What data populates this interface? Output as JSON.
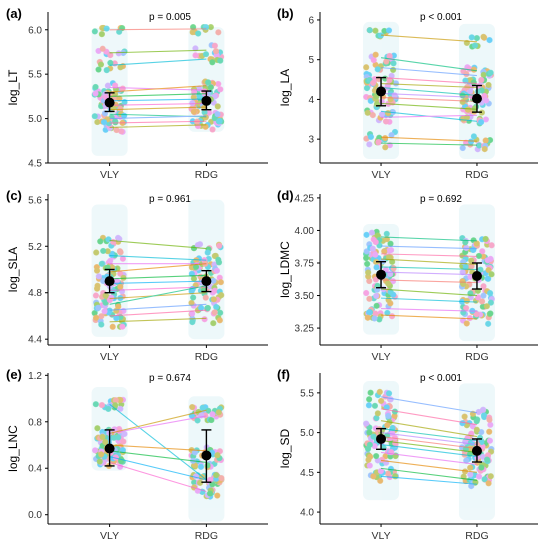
{
  "figure": {
    "x_categories": [
      "VLY",
      "RDG"
    ]
  },
  "chart_data": [
    {
      "type": "scatter",
      "panel_label": "(a)",
      "ylabel": "log_LT",
      "pvalue": "p = 0.005",
      "ylim": [
        4.5,
        6.2
      ],
      "yticks": [
        "4.5",
        "5.0",
        "5.5",
        "6.0"
      ],
      "yticks_values": [
        4.5,
        5.0,
        5.5,
        6.0
      ],
      "categories": [
        "VLY",
        "RDG"
      ],
      "means": [
        5.18,
        5.2
      ],
      "errors": [
        [
          5.08,
          5.29
        ],
        [
          5.1,
          5.31
        ]
      ],
      "pairs": [
        [
          6.0,
          6.01
        ],
        [
          5.74,
          5.77
        ],
        [
          5.6,
          5.67
        ],
        [
          5.35,
          5.32
        ],
        [
          5.3,
          5.37
        ],
        [
          5.25,
          5.28
        ],
        [
          5.2,
          5.22
        ],
        [
          5.15,
          5.17
        ],
        [
          5.1,
          5.13
        ],
        [
          5.05,
          5.02
        ],
        [
          5.0,
          5.03
        ],
        [
          4.95,
          4.97
        ],
        [
          4.9,
          4.93
        ]
      ],
      "cloud_min": [
        4.58,
        4.85
      ],
      "cloud_max": [
        6.02,
        6.03
      ]
    },
    {
      "type": "scatter",
      "panel_label": "(b)",
      "ylabel": "log_LA",
      "pvalue": "p < 0.001",
      "ylim": [
        2.4,
        6.2
      ],
      "yticks": [
        "3",
        "4",
        "5",
        "6"
      ],
      "yticks_values": [
        3,
        4,
        5,
        6
      ],
      "categories": [
        "VLY",
        "RDG"
      ],
      "means": [
        4.2,
        4.02
      ],
      "errors": [
        [
          3.84,
          4.55
        ],
        [
          3.68,
          4.35
        ]
      ],
      "pairs": [
        [
          5.62,
          5.45
        ],
        [
          5.05,
          4.72
        ],
        [
          4.8,
          4.6
        ],
        [
          4.55,
          4.4
        ],
        [
          4.4,
          4.3
        ],
        [
          4.3,
          4.1
        ],
        [
          4.15,
          4.05
        ],
        [
          4.05,
          3.95
        ],
        [
          3.9,
          3.75
        ],
        [
          3.7,
          3.45
        ],
        [
          3.55,
          3.6
        ],
        [
          3.05,
          2.95
        ],
        [
          2.9,
          2.85
        ]
      ],
      "cloud_min": [
        2.5,
        2.5
      ],
      "cloud_max": [
        5.95,
        5.9
      ]
    },
    {
      "type": "scatter",
      "panel_label": "(c)",
      "ylabel": "log_SLA",
      "pvalue": "p = 0.961",
      "ylim": [
        4.35,
        5.65
      ],
      "yticks": [
        "4.4",
        "4.8",
        "5.2",
        "5.6"
      ],
      "yticks_values": [
        4.4,
        4.8,
        5.2,
        5.6
      ],
      "categories": [
        "VLY",
        "RDG"
      ],
      "means": [
        4.9,
        4.9
      ],
      "errors": [
        [
          4.8,
          5.0
        ],
        [
          4.81,
          4.99
        ]
      ],
      "pairs": [
        [
          5.25,
          5.18
        ],
        [
          5.12,
          5.08
        ],
        [
          5.05,
          5.05
        ],
        [
          4.98,
          5.05
        ],
        [
          4.92,
          4.95
        ],
        [
          4.88,
          4.9
        ],
        [
          4.82,
          4.85
        ],
        [
          4.75,
          4.8
        ],
        [
          4.7,
          4.86
        ],
        [
          4.65,
          4.7
        ],
        [
          4.6,
          4.65
        ],
        [
          4.55,
          4.58
        ]
      ],
      "cloud_min": [
        4.42,
        4.4
      ],
      "cloud_max": [
        5.56,
        5.6
      ]
    },
    {
      "type": "scatter",
      "panel_label": "(d)",
      "ylabel": "log_LDMC",
      "pvalue": "p = 0.692",
      "ylim": [
        3.12,
        4.28
      ],
      "yticks": [
        "3.25",
        "3.50",
        "3.75",
        "4.00",
        "4.25"
      ],
      "yticks_values": [
        3.25,
        3.5,
        3.75,
        4.0,
        4.25
      ],
      "categories": [
        "VLY",
        "RDG"
      ],
      "means": [
        3.66,
        3.65
      ],
      "errors": [
        [
          3.56,
          3.76
        ],
        [
          3.55,
          3.75
        ]
      ],
      "pairs": [
        [
          3.95,
          3.92
        ],
        [
          3.88,
          3.86
        ],
        [
          3.82,
          3.8
        ],
        [
          3.78,
          3.74
        ],
        [
          3.72,
          3.7
        ],
        [
          3.68,
          3.66
        ],
        [
          3.62,
          3.6
        ],
        [
          3.55,
          3.5
        ],
        [
          3.48,
          3.45
        ],
        [
          3.4,
          3.38
        ],
        [
          3.35,
          3.32
        ]
      ],
      "cloud_min": [
        3.2,
        3.15
      ],
      "cloud_max": [
        4.05,
        4.2
      ]
    },
    {
      "type": "scatter",
      "panel_label": "(e)",
      "ylabel": "log_LNC",
      "pvalue": "p = 0.674",
      "ylim": [
        -0.08,
        1.22
      ],
      "yticks": [
        "0.0",
        "0.4",
        "0.8",
        "1.2"
      ],
      "yticks_values": [
        0.0,
        0.4,
        0.8,
        1.2
      ],
      "categories": [
        "VLY",
        "RDG"
      ],
      "means": [
        0.57,
        0.51
      ],
      "errors": [
        [
          0.42,
          0.73
        ],
        [
          0.28,
          0.73
        ]
      ],
      "pairs": [
        [
          0.95,
          0.3
        ],
        [
          0.7,
          0.85
        ],
        [
          0.6,
          0.55
        ],
        [
          0.55,
          0.45
        ],
        [
          0.5,
          0.3
        ],
        [
          0.45,
          0.2
        ],
        [
          0.7,
          0.9
        ]
      ],
      "cloud_min": [
        0.38,
        -0.06
      ],
      "cloud_max": [
        1.1,
        1.02
      ]
    },
    {
      "type": "scatter",
      "panel_label": "(f)",
      "ylabel": "log_SD",
      "pvalue": "p < 0.001",
      "ylim": [
        3.85,
        5.75
      ],
      "yticks": [
        "4.0",
        "4.5",
        "5.0",
        "5.5"
      ],
      "yticks_values": [
        4.0,
        4.5,
        5.0,
        5.5
      ],
      "categories": [
        "VLY",
        "RDG"
      ],
      "means": [
        4.92,
        4.77
      ],
      "errors": [
        [
          4.79,
          5.05
        ],
        [
          4.63,
          4.92
        ]
      ],
      "pairs": [
        [
          5.45,
          5.25
        ],
        [
          5.3,
          5.1
        ],
        [
          5.15,
          4.95
        ],
        [
          5.05,
          4.9
        ],
        [
          5.0,
          4.85
        ],
        [
          4.95,
          4.8
        ],
        [
          4.9,
          4.75
        ],
        [
          4.85,
          4.7
        ],
        [
          4.75,
          4.6
        ],
        [
          4.65,
          4.5
        ],
        [
          4.55,
          4.4
        ],
        [
          4.45,
          4.35
        ]
      ],
      "cloud_min": [
        4.15,
        3.9
      ],
      "cloud_max": [
        5.65,
        5.62
      ]
    }
  ]
}
